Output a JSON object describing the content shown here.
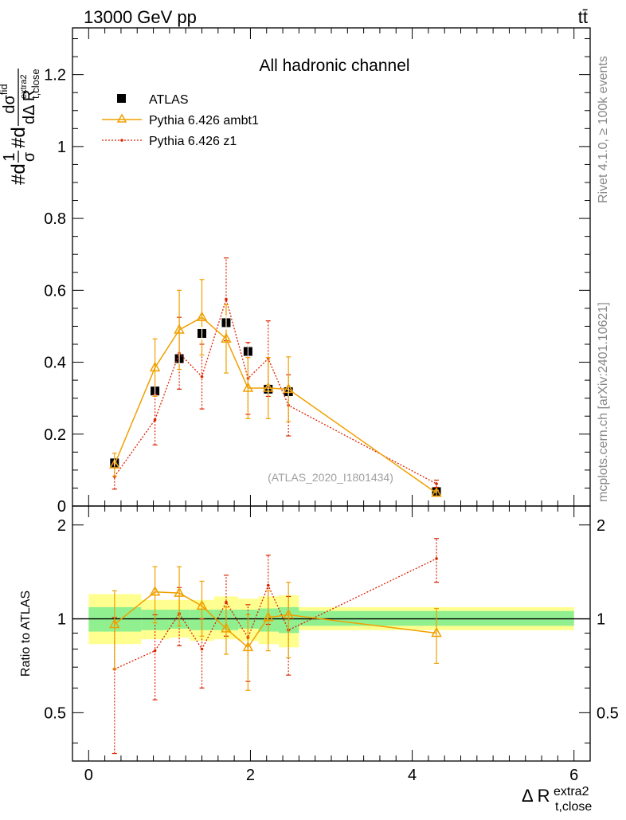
{
  "header": {
    "energy_label": "13000 GeV pp",
    "process_label": "tt̄"
  },
  "side_labels": {
    "rivet": "Rivet 4.1.0, ≥ 100k events",
    "mcplots": "mcplots.cern.ch [arXiv:2401.10621]"
  },
  "colors": {
    "data": "#000000",
    "ambt1": "#f0a000",
    "z1": "#dd2200",
    "band_inner": "#90f090",
    "band_outer": "#ffff90"
  },
  "chart_data": [
    {
      "type": "line",
      "title": "All hadronic channel",
      "analysis_id": "(ATLAS_2020_I1801434)",
      "xlabel": "Δ R",
      "xlabel_sub": "t,close",
      "xlabel_sup": "extra2",
      "ylabel": "#d 1/σ #d dσ^{fid} / dΔ R_{t,close}^{extra2}",
      "ylabel_parts": {
        "prefix1": "#d",
        "frac1_num": "1",
        "frac1_den": "σ",
        "prefix2": "#d",
        "frac2_num": "dσ",
        "frac2_num_sup": "fid",
        "frac2_den": "dΔ R",
        "frac2_den_sub": "t,close",
        "frac2_den_sup": "extra2"
      },
      "xlim": [
        -0.2,
        6.2
      ],
      "ylim": [
        0,
        1.33
      ],
      "yticks": [
        0,
        0.2,
        0.4,
        0.6,
        0.8,
        1,
        1.2
      ],
      "ytick_labels": [
        "0",
        "0.2",
        "0.4",
        "0.6",
        "0.8",
        "1",
        "1.2"
      ],
      "legend": [
        "ATLAS",
        "Pythia 6.426 ambt1",
        "Pythia 6.426 z1"
      ],
      "legend_position": "top-left",
      "x": [
        0.32,
        0.82,
        1.12,
        1.4,
        1.7,
        1.97,
        2.22,
        2.47,
        4.3
      ],
      "bin_edges": [
        0,
        0.65,
        1.0,
        1.25,
        1.55,
        1.85,
        2.1,
        2.35,
        2.6,
        6.0
      ],
      "series": [
        {
          "name": "ATLAS",
          "values": [
            0.12,
            0.32,
            0.41,
            0.48,
            0.51,
            0.43,
            0.325,
            0.318,
            0.04
          ],
          "errors": [
            0.01,
            0.012,
            0.015,
            0.018,
            0.02,
            0.015,
            0.012,
            0.012,
            0.003
          ]
        },
        {
          "name": "Pythia 6.426 ambt1",
          "values": [
            0.115,
            0.385,
            0.49,
            0.525,
            0.465,
            0.328,
            0.328,
            0.325,
            0.036
          ],
          "errors": [
            0.032,
            0.08,
            0.11,
            0.105,
            0.095,
            0.085,
            0.085,
            0.09,
            0.008
          ]
        },
        {
          "name": "Pythia 6.426 z1",
          "values": [
            0.082,
            0.24,
            0.425,
            0.36,
            0.575,
            0.355,
            0.41,
            0.28,
            0.062
          ],
          "errors": [
            0.035,
            0.07,
            0.1,
            0.09,
            0.115,
            0.1,
            0.105,
            0.085,
            0.01
          ]
        }
      ]
    },
    {
      "type": "line",
      "title": "",
      "xlabel": "Δ R",
      "ylabel": "Ratio to ATLAS",
      "xlim": [
        -0.2,
        6.2
      ],
      "ylim": [
        0.35,
        2.3
      ],
      "yticks": [
        0.5,
        1,
        2
      ],
      "ytick_labels": [
        "0.5",
        "1",
        "2"
      ],
      "xticks": [
        0,
        2,
        4,
        6
      ],
      "xtick_labels": [
        "0",
        "2",
        "4",
        "6"
      ],
      "x": [
        0.32,
        0.82,
        1.12,
        1.4,
        1.7,
        1.97,
        2.22,
        2.47,
        4.3
      ],
      "bin_edges": [
        0,
        0.65,
        1.0,
        1.25,
        1.55,
        1.85,
        2.1,
        2.35,
        2.6,
        6.0
      ],
      "band_inner": [
        [
          0.91,
          1.09
        ],
        [
          0.92,
          1.07
        ],
        [
          0.93,
          1.07
        ],
        [
          0.92,
          1.07
        ],
        [
          0.92,
          1.07
        ],
        [
          0.93,
          1.07
        ],
        [
          0.91,
          1.08
        ],
        [
          0.9,
          1.09
        ],
        [
          0.95,
          1.06
        ]
      ],
      "band_outer": [
        [
          0.83,
          1.2
        ],
        [
          0.86,
          1.15
        ],
        [
          0.87,
          1.15
        ],
        [
          0.85,
          1.15
        ],
        [
          0.86,
          1.18
        ],
        [
          0.85,
          1.16
        ],
        [
          0.83,
          1.18
        ],
        [
          0.81,
          1.19
        ],
        [
          0.92,
          1.09
        ]
      ],
      "series": [
        {
          "name": "Pythia 6.426 ambt1",
          "values": [
            0.96,
            1.22,
            1.21,
            1.1,
            0.93,
            0.81,
            1.01,
            1.03,
            0.9
          ],
          "errors": [
            0.27,
            0.25,
            0.26,
            0.22,
            0.16,
            0.22,
            0.22,
            0.28,
            0.18
          ]
        },
        {
          "name": "Pythia 6.426 z1",
          "values": [
            0.69,
            0.79,
            1.04,
            0.8,
            1.13,
            0.87,
            1.28,
            0.92,
            1.56
          ],
          "errors": [
            0.32,
            0.24,
            0.22,
            0.2,
            0.25,
            0.24,
            0.32,
            0.26,
            0.25
          ]
        }
      ]
    }
  ]
}
